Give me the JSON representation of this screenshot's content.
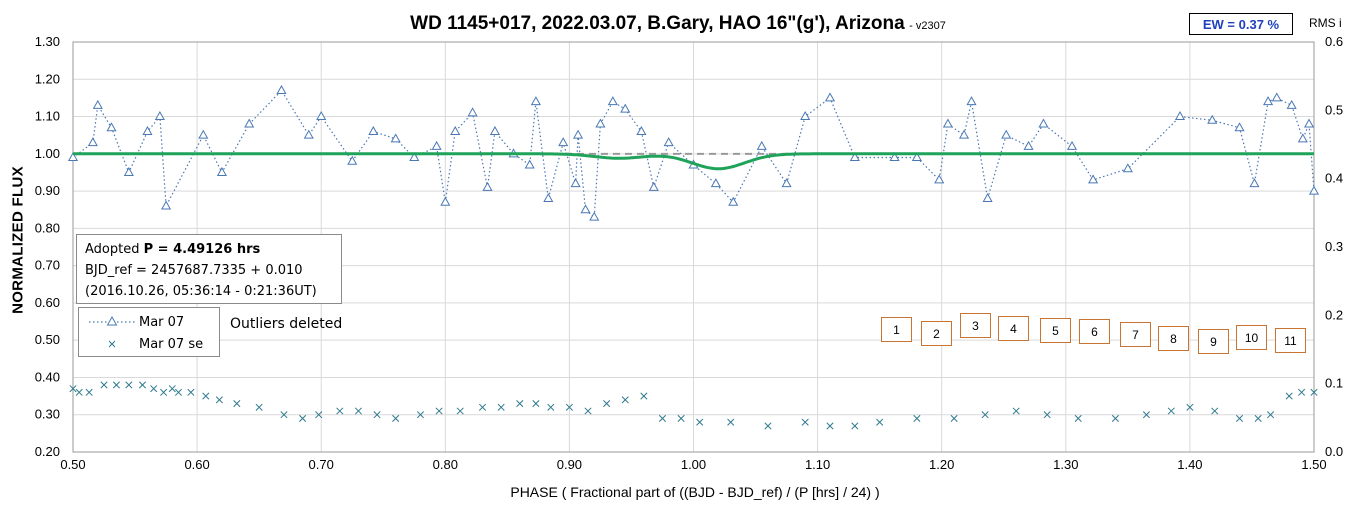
{
  "chart_data": {
    "type": "scatter",
    "title": "WD 1145+017, 2022.03.07, B.Gary, HAO 16\"(g'), Arizona",
    "version_note": "-  v2307",
    "ew_label": "EW = 0.37 %",
    "xlabel": "PHASE ( Fractional part of ((BJD - BJD_ref) / (P [hrs] / 24) )",
    "ylabel": "NORMALIZED FLUX",
    "y2label": "RMS i",
    "xlim": [
      0.5,
      1.5
    ],
    "ylim": [
      0.2,
      1.3
    ],
    "y2lim": [
      0.0,
      0.6
    ],
    "grid": true,
    "x_ticks": [
      "0.50",
      "0.60",
      "0.70",
      "0.80",
      "0.90",
      "1.00",
      "1.10",
      "1.20",
      "1.30",
      "1.40",
      "1.50"
    ],
    "y_ticks": [
      "0.20",
      "0.30",
      "0.40",
      "0.50",
      "0.60",
      "0.70",
      "0.80",
      "0.90",
      "1.00",
      "1.10",
      "1.20",
      "1.30"
    ],
    "y2_ticks": [
      "0.0",
      "0.1",
      "0.2",
      "0.3",
      "0.4",
      "0.5",
      "0.6"
    ],
    "info": {
      "line1_prefix": "Adopted ",
      "line1_bold": "P = 4.49126 hrs",
      "line2": "BJD_ref = 2457687.7335 + 0.010",
      "line3": "(2016.10.26, 05:36:14 - 0:21:36UT)"
    },
    "legend": {
      "series1": "Mar 07",
      "series2": "Mar 07 se",
      "note": "Outliers deleted"
    },
    "numbered_boxes": [
      "1",
      "2",
      "3",
      "4",
      "5",
      "6",
      "7",
      "8",
      "9",
      "10",
      "11"
    ],
    "dip_model": {
      "baseline": 1.0,
      "dips": [
        {
          "center": 0.94,
          "depth": 0.012,
          "width": 0.028
        },
        {
          "center": 1.02,
          "depth": 0.04,
          "width": 0.03
        }
      ]
    },
    "series": [
      {
        "name": "Mar 07",
        "marker": "triangle",
        "color": "#4a78b5",
        "x": [
          0.5,
          0.516,
          0.52,
          0.531,
          0.545,
          0.56,
          0.57,
          0.575,
          0.605,
          0.62,
          0.642,
          0.668,
          0.69,
          0.7,
          0.725,
          0.742,
          0.76,
          0.775,
          0.793,
          0.8,
          0.808,
          0.822,
          0.834,
          0.84,
          0.855,
          0.868,
          0.873,
          0.883,
          0.895,
          0.905,
          0.907,
          0.913,
          0.92,
          0.925,
          0.935,
          0.945,
          0.958,
          0.968,
          0.98,
          1.0,
          1.018,
          1.032,
          1.055,
          1.075,
          1.09,
          1.11,
          1.13,
          1.162,
          1.18,
          1.198,
          1.205,
          1.218,
          1.224,
          1.237,
          1.252,
          1.27,
          1.282,
          1.305,
          1.322,
          1.35,
          1.392,
          1.418,
          1.44,
          1.452,
          1.463,
          1.47,
          1.482,
          1.491,
          1.496,
          1.5
        ],
        "y": [
          0.99,
          1.03,
          1.13,
          1.07,
          0.95,
          1.06,
          1.1,
          0.86,
          1.05,
          0.95,
          1.08,
          1.17,
          1.05,
          1.1,
          0.98,
          1.06,
          1.04,
          0.99,
          1.02,
          0.87,
          1.06,
          1.11,
          0.91,
          1.06,
          1.0,
          0.97,
          1.14,
          0.88,
          1.03,
          0.92,
          1.05,
          0.85,
          0.83,
          1.08,
          1.14,
          1.12,
          1.06,
          0.91,
          1.03,
          0.97,
          0.92,
          0.87,
          1.02,
          0.92,
          1.1,
          1.15,
          0.99,
          0.99,
          0.99,
          0.93,
          1.08,
          1.05,
          1.14,
          0.88,
          1.05,
          1.02,
          1.08,
          1.02,
          0.93,
          0.96,
          1.1,
          1.09,
          1.07,
          0.92,
          1.14,
          1.15,
          1.13,
          1.04,
          1.08,
          0.9
        ]
      },
      {
        "name": "Mar 07 se",
        "marker": "x",
        "color": "#2f7a8e",
        "x": [
          0.5,
          0.505,
          0.513,
          0.525,
          0.535,
          0.545,
          0.556,
          0.565,
          0.573,
          0.58,
          0.585,
          0.595,
          0.607,
          0.618,
          0.632,
          0.65,
          0.67,
          0.685,
          0.698,
          0.715,
          0.73,
          0.745,
          0.76,
          0.78,
          0.795,
          0.812,
          0.83,
          0.845,
          0.86,
          0.873,
          0.885,
          0.9,
          0.915,
          0.93,
          0.945,
          0.96,
          0.975,
          0.99,
          1.005,
          1.03,
          1.06,
          1.09,
          1.11,
          1.13,
          1.15,
          1.18,
          1.21,
          1.235,
          1.26,
          1.285,
          1.31,
          1.34,
          1.365,
          1.385,
          1.4,
          1.42,
          1.44,
          1.455,
          1.465,
          1.48,
          1.49,
          1.5
        ],
        "y": [
          0.37,
          0.36,
          0.36,
          0.38,
          0.38,
          0.38,
          0.38,
          0.37,
          0.36,
          0.37,
          0.36,
          0.36,
          0.35,
          0.34,
          0.33,
          0.32,
          0.3,
          0.29,
          0.3,
          0.31,
          0.31,
          0.3,
          0.29,
          0.3,
          0.31,
          0.31,
          0.32,
          0.32,
          0.33,
          0.33,
          0.32,
          0.32,
          0.31,
          0.33,
          0.34,
          0.35,
          0.29,
          0.29,
          0.28,
          0.28,
          0.27,
          0.28,
          0.27,
          0.27,
          0.28,
          0.29,
          0.29,
          0.3,
          0.31,
          0.3,
          0.29,
          0.29,
          0.3,
          0.31,
          0.32,
          0.31,
          0.29,
          0.29,
          0.3,
          0.35,
          0.36,
          0.36
        ]
      }
    ]
  }
}
